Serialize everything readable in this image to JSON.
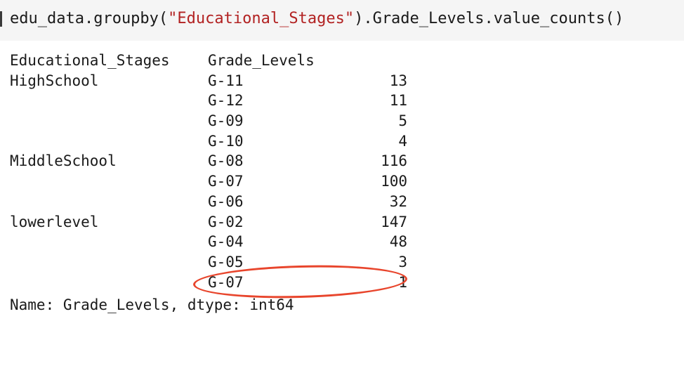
{
  "input": {
    "code_prefix": "edu_data.groupby(",
    "code_string": "\"Educational_Stages\"",
    "code_suffix": ").Grade_Levels.value_counts()"
  },
  "output": {
    "headers": {
      "stage": "Educational_Stages",
      "grade": "Grade_Levels"
    },
    "rows": [
      {
        "stage": "HighSchool",
        "grade": "G-11",
        "count": "13"
      },
      {
        "stage": "",
        "grade": "G-12",
        "count": "11"
      },
      {
        "stage": "",
        "grade": "G-09",
        "count": "5"
      },
      {
        "stage": "",
        "grade": "G-10",
        "count": "4"
      },
      {
        "stage": "MiddleSchool",
        "grade": "G-08",
        "count": "116"
      },
      {
        "stage": "",
        "grade": "G-07",
        "count": "100"
      },
      {
        "stage": "",
        "grade": "G-06",
        "count": "32"
      },
      {
        "stage": "lowerlevel",
        "grade": "G-02",
        "count": "147"
      },
      {
        "stage": "",
        "grade": "G-04",
        "count": "48"
      },
      {
        "stage": "",
        "grade": "G-05",
        "count": "3"
      },
      {
        "stage": "",
        "grade": "G-07",
        "count": "1"
      }
    ],
    "footer": "Name: Grade_Levels, dtype: int64"
  },
  "annotation": {
    "color": "#e8452c"
  }
}
